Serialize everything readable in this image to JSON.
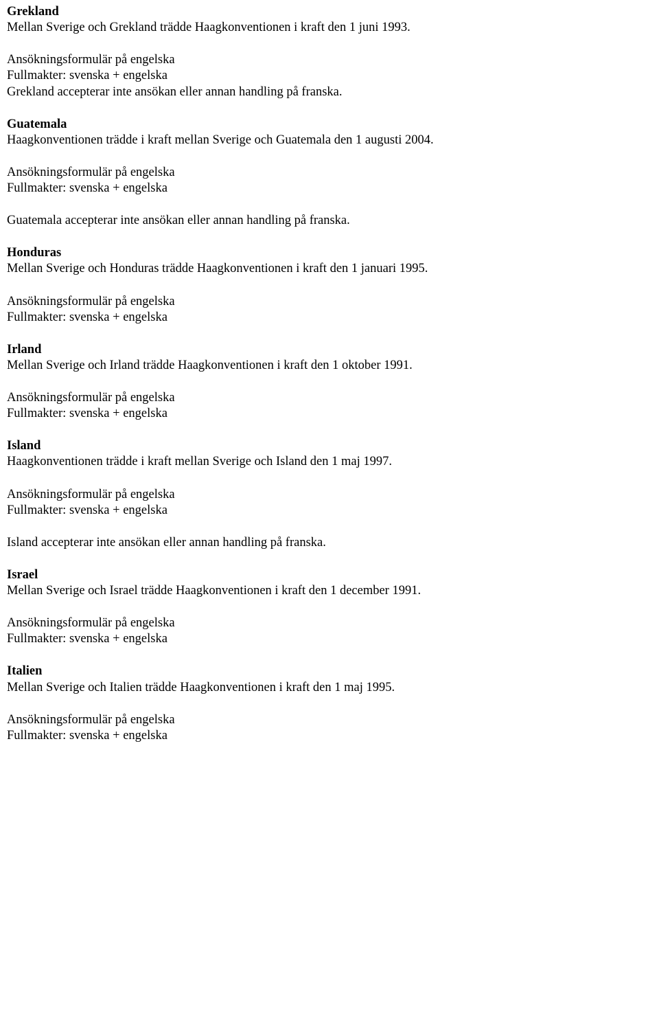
{
  "font": {
    "family": "Times New Roman",
    "size_pt": 14,
    "color": "#000000"
  },
  "background_color": "#ffffff",
  "form_line": "Ansökningsformulär på engelska",
  "fullmakter_line": "Fullmakter: svenska + engelska",
  "countries": [
    {
      "name": "Grekland",
      "intro": "Mellan Sverige och Grekland trädde Haagkonventionen i kraft den 1 juni 1993.",
      "note": "Grekland accepterar inte ansökan eller annan handling på franska."
    },
    {
      "name": "Guatemala",
      "intro": "Haagkonventionen trädde i kraft mellan Sverige och Guatemala den 1 augusti 2004.",
      "note": "Guatemala accepterar inte ansökan eller annan handling på franska."
    },
    {
      "name": "Honduras",
      "intro": "Mellan Sverige och Honduras trädde Haagkonventionen i kraft den 1 januari 1995.",
      "note": ""
    },
    {
      "name": "Irland",
      "intro": "Mellan Sverige och Irland trädde Haagkonventionen i kraft den 1 oktober 1991.",
      "note": ""
    },
    {
      "name": "Island",
      "intro": "Haagkonventionen trädde i kraft mellan Sverige och Island den 1 maj 1997.",
      "note": "Island accepterar inte ansökan eller annan handling på franska."
    },
    {
      "name": "Israel",
      "intro": "Mellan Sverige och Israel trädde Haagkonventionen i kraft den 1 december 1991.",
      "note": ""
    },
    {
      "name": "Italien",
      "intro": "Mellan Sverige och Italien trädde Haagkonventionen i kraft den 1 maj 1995.",
      "note": ""
    }
  ]
}
